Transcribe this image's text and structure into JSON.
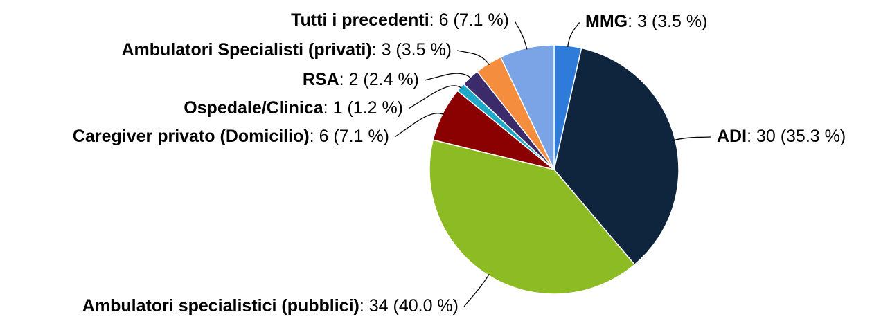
{
  "chart_data": {
    "type": "pie",
    "categories": [
      "MMG",
      "ADI",
      "Ambulatori specialistici (pubblici)",
      "Caregiver privato (Domicilio)",
      "Ospedale/Clinica",
      "RSA",
      "Ambulatori Specialisti (privati)",
      "Tutti i precedenti"
    ],
    "values": [
      3,
      30,
      34,
      6,
      1,
      2,
      3,
      6
    ],
    "value_labels": [
      ": 3 (3.5 %)",
      ": 30 (35.3 %)",
      ": 34 (40.0 %)",
      ": 6 (7.1 %)",
      ": 1 (1.2 %)",
      ": 2 (2.4 %)",
      ": 3 (3.5 %)",
      ": 6 (7.1 %)"
    ],
    "colors": [
      "#2f7bd9",
      "#0f243d",
      "#8cbb23",
      "#8b0000",
      "#1ea9c9",
      "#3c2b6b",
      "#f48d3d",
      "#7ba4e6"
    ]
  }
}
